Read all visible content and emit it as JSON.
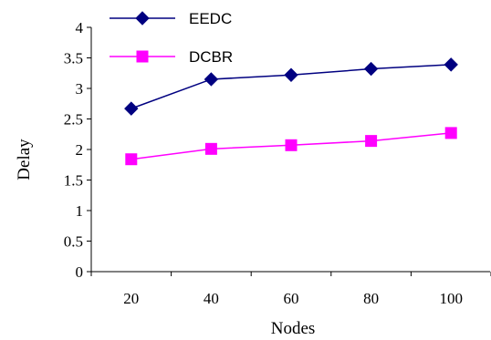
{
  "chart_data": {
    "type": "line",
    "xlabel": "Nodes",
    "ylabel": "Delay",
    "x": [
      20,
      40,
      60,
      80,
      100
    ],
    "x_tick_labels": [
      "20",
      "40",
      "60",
      "80",
      "100"
    ],
    "y_tick_labels": [
      "0",
      "0.5",
      "1",
      "1.5",
      "2",
      "2.5",
      "3",
      "3.5",
      "4"
    ],
    "ylim": [
      0,
      4
    ],
    "grid": false,
    "legend_position": "top-left",
    "series": [
      {
        "name": "EEDC",
        "values": [
          2.67,
          3.15,
          3.22,
          3.32,
          3.39
        ],
        "color": "#000080",
        "marker": "diamond"
      },
      {
        "name": "DCBR",
        "values": [
          1.84,
          2.01,
          2.07,
          2.14,
          2.27
        ],
        "color": "#ff00ff",
        "marker": "square"
      }
    ]
  }
}
